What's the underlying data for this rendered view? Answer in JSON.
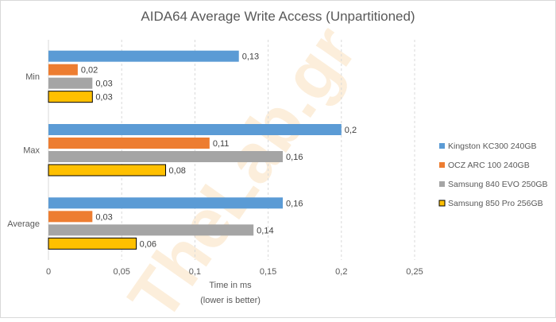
{
  "chart_data": {
    "type": "bar",
    "orientation": "horizontal",
    "title": "AIDA64 Average Write Access (Unpartitioned)",
    "xlabel": "Time  in ms",
    "xlabel_sub": "(lower is better)",
    "ylabel": "",
    "xlim": [
      0,
      0.25
    ],
    "xticks": [
      "0",
      "0,05",
      "0,1",
      "0,15",
      "0,2",
      "0,25"
    ],
    "xtick_values": [
      0,
      0.05,
      0.1,
      0.15,
      0.2,
      0.25
    ],
    "grid": true,
    "legend_position": "right",
    "categories": [
      "Min",
      "Max",
      "Average"
    ],
    "series": [
      {
        "name": "Kingston KC300 240GB",
        "color": "#5b9bd5",
        "values": [
          0.13,
          0.2,
          0.16
        ],
        "labels": [
          "0,13",
          "0,2",
          "0,16"
        ]
      },
      {
        "name": "OCZ ARC 100 240GB",
        "color": "#ed7d31",
        "values": [
          0.02,
          0.11,
          0.03
        ],
        "labels": [
          "0,02",
          "0,11",
          "0,03"
        ]
      },
      {
        "name": "Samsung 840 EVO 250GB",
        "color": "#a5a5a5",
        "values": [
          0.03,
          0.16,
          0.14
        ],
        "labels": [
          "0,03",
          "0,16",
          "0,14"
        ]
      },
      {
        "name": "Samsung 850 Pro 256GB",
        "color": "#ffc000",
        "outline": "#000000",
        "values": [
          0.03,
          0.08,
          0.06
        ],
        "labels": [
          "0,03",
          "0,08",
          "0,06"
        ]
      }
    ],
    "watermark": "TheLab.gr"
  }
}
